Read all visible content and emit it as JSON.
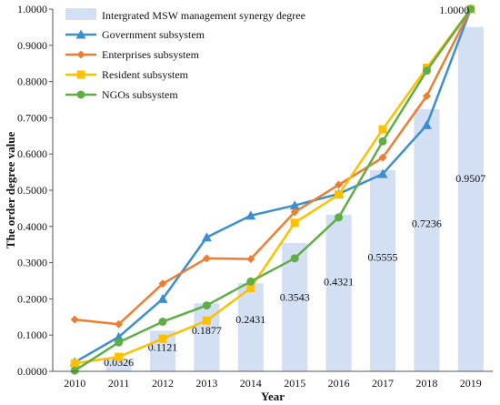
{
  "chart_data": {
    "type": "bar+line",
    "title": "",
    "xlabel": "Year",
    "ylabel": "The order degree value",
    "ylim": [
      0,
      1
    ],
    "y_ticks": [
      "0.0000",
      "0.1000",
      "0.2000",
      "0.3000",
      "0.4000",
      "0.5000",
      "0.6000",
      "0.7000",
      "0.8000",
      "0.9000",
      "1.0000"
    ],
    "categories": [
      "2010",
      "2011",
      "2012",
      "2013",
      "2014",
      "2015",
      "2016",
      "2017",
      "2018",
      "2019"
    ],
    "bars": {
      "name": "Intergrated MSW management synergy degree",
      "color": "#d3dff3",
      "values": [
        null,
        0.0326,
        0.1121,
        0.1877,
        0.2431,
        0.3543,
        0.4321,
        0.5555,
        0.7236,
        0.9507
      ],
      "labels": [
        "",
        "0.0326",
        "0.1121",
        "0.1877",
        "0.2431",
        "0.3543",
        "0.4321",
        "0.5555",
        "0.7236",
        "0.9507"
      ]
    },
    "series": [
      {
        "name": "Government subsystem",
        "color": "#3b8fd0",
        "marker": "triangle",
        "values": [
          0.025,
          0.095,
          0.2,
          0.37,
          0.43,
          0.458,
          0.49,
          0.545,
          0.68,
          1.0
        ]
      },
      {
        "name": "Enterprises subsystem",
        "color": "#ed7d31",
        "marker": "diamond",
        "values": [
          0.143,
          0.13,
          0.242,
          0.312,
          0.31,
          0.44,
          0.515,
          0.59,
          0.76,
          1.0
        ]
      },
      {
        "name": "Resident subsystem",
        "color": "#ffc000",
        "marker": "square",
        "values": [
          0.022,
          0.04,
          0.09,
          0.14,
          0.23,
          0.41,
          0.488,
          0.668,
          0.838,
          1.0
        ]
      },
      {
        "name": "NGOs subsystem",
        "color": "#5fae45",
        "marker": "circle",
        "values": [
          0.002,
          0.08,
          0.137,
          0.182,
          0.248,
          0.312,
          0.425,
          0.635,
          0.83,
          1.0
        ]
      }
    ],
    "annotations": [
      "1.0000"
    ],
    "legend_position": "top-left"
  }
}
